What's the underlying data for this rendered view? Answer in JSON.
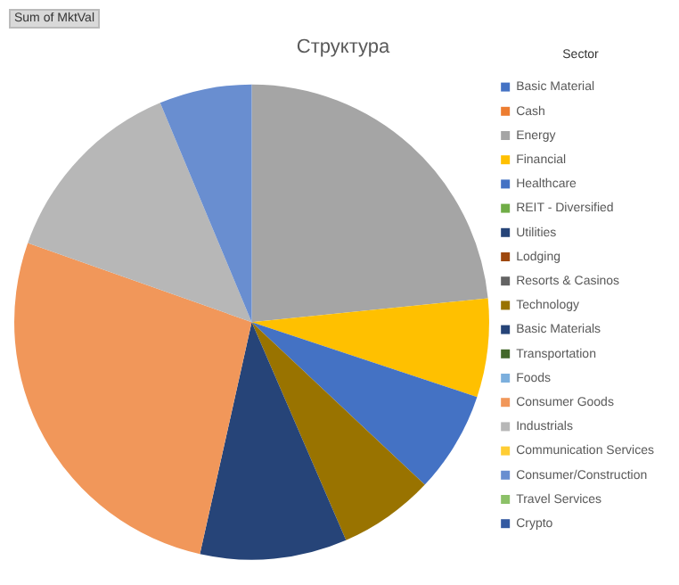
{
  "chart_data": {
    "type": "pie",
    "title": "Структура",
    "legend_title": "Sector",
    "legend": "right",
    "annotations": [
      "Sum of MktVal"
    ],
    "categories": [
      "Basic Material",
      "Cash",
      "Energy",
      "Financial",
      "Healthcare",
      "REIT - Diversified",
      "Utilities",
      "Lodging",
      "Resorts & Casinos",
      "Technology",
      "Basic Materials",
      "Transportation",
      "Foods",
      "Consumer Goods",
      "Industrials",
      "Communication Services",
      "Consumer/Construction",
      "Travel Services",
      "Crypto"
    ],
    "values": [
      0,
      0,
      23.4,
      6.7,
      6.9,
      0,
      0,
      0,
      0,
      6.5,
      10,
      0,
      0,
      26.9,
      13.3,
      0,
      6.3,
      0,
      0
    ],
    "colors": [
      "#4472c4",
      "#ed7d31",
      "#a5a5a5",
      "#ffc000",
      "#4472c4",
      "#70ad47",
      "#264478",
      "#9e480e",
      "#636363",
      "#997300",
      "#264478",
      "#43682b",
      "#7cafdd",
      "#f1975a",
      "#b7b7b7",
      "#ffcd33",
      "#698ed0",
      "#8cc168",
      "#335aa1"
    ]
  }
}
